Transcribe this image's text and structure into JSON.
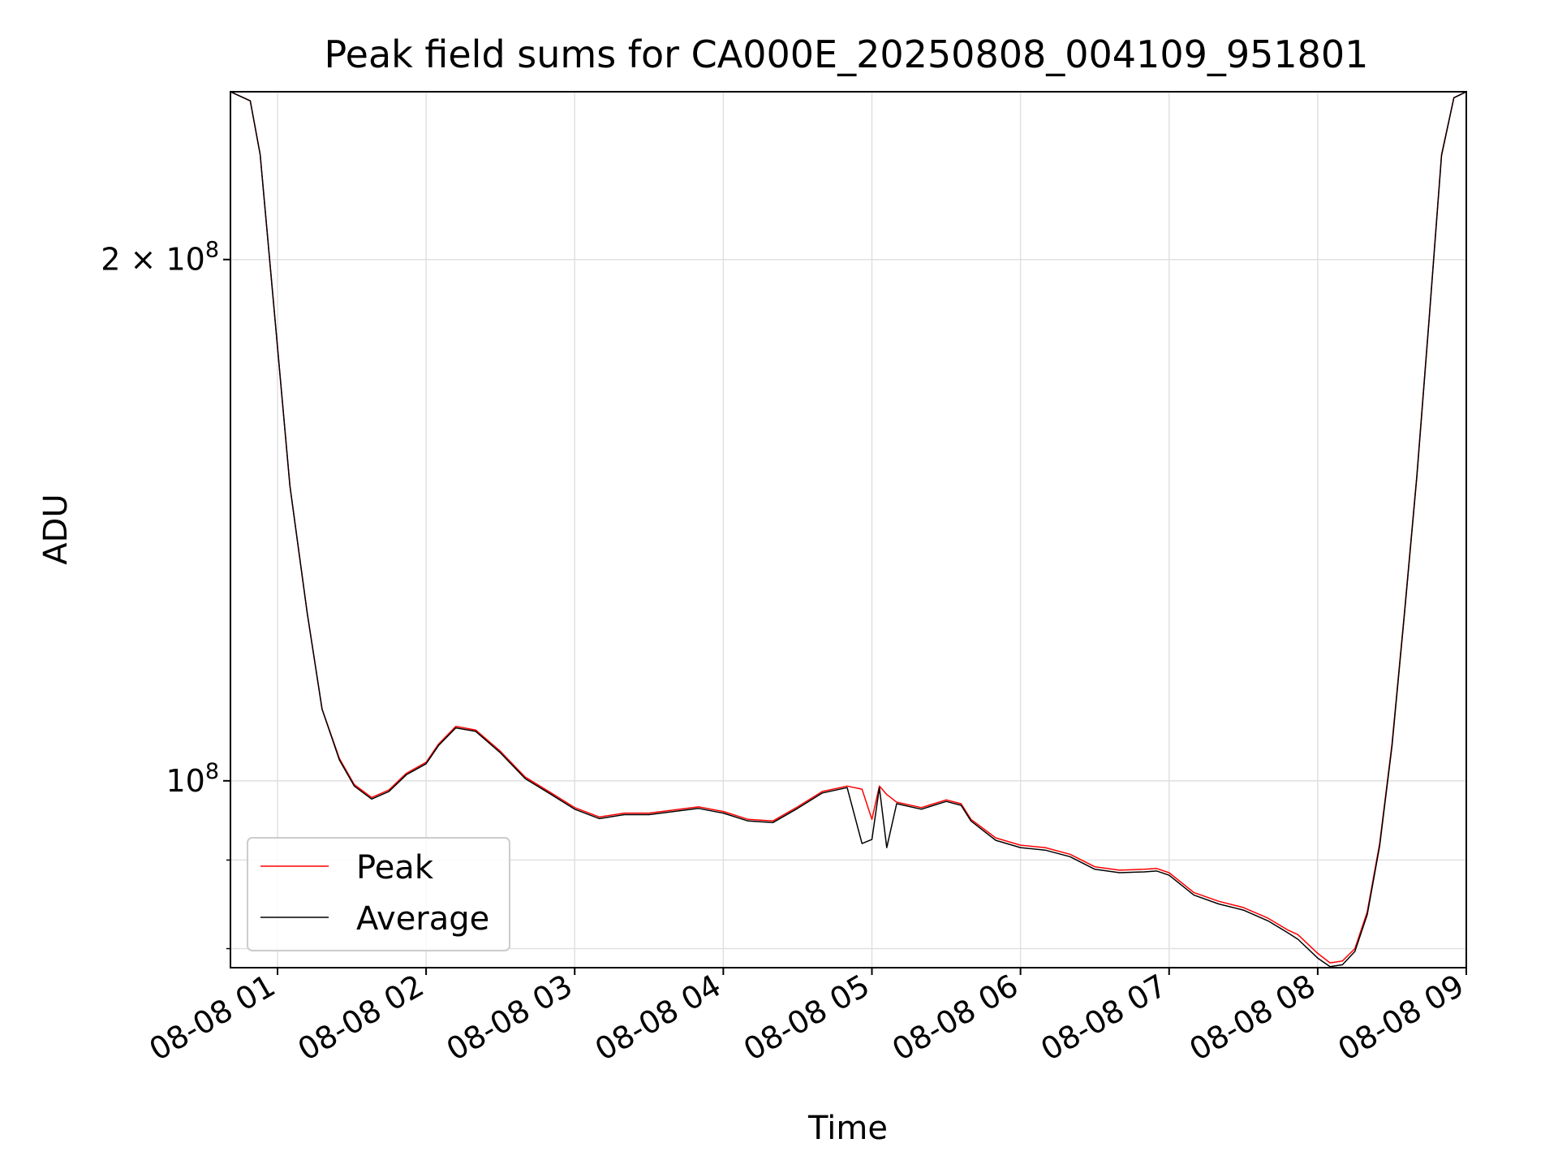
{
  "chart_data": {
    "type": "line",
    "title": "Peak field sums for CA000E_20250808_004109_951801",
    "xlabel": "Time",
    "ylabel": "ADU",
    "y_scale": "log",
    "ylim": [
      78000000,
      250000000
    ],
    "xlim": [
      "2025-08-08 00:41",
      "2025-08-08 09:00"
    ],
    "grid": true,
    "legend_position": "lower-left",
    "x_ticks": [
      {
        "time": "2025-08-08 01:00",
        "label": "08-08 01"
      },
      {
        "time": "2025-08-08 02:00",
        "label": "08-08 02"
      },
      {
        "time": "2025-08-08 03:00",
        "label": "08-08 03"
      },
      {
        "time": "2025-08-08 04:00",
        "label": "08-08 04"
      },
      {
        "time": "2025-08-08 05:00",
        "label": "08-08 05"
      },
      {
        "time": "2025-08-08 06:00",
        "label": "08-08 06"
      },
      {
        "time": "2025-08-08 07:00",
        "label": "08-08 07"
      },
      {
        "time": "2025-08-08 08:00",
        "label": "08-08 08"
      },
      {
        "time": "2025-08-08 09:00",
        "label": "08-08 09"
      }
    ],
    "y_ticks": [
      {
        "value": 100000000,
        "base": "10",
        "exp": "8",
        "mant": ""
      },
      {
        "value": 200000000,
        "base": "10",
        "exp": "8",
        "mant": "2 × "
      }
    ],
    "y_minor_ticks": [
      80000000,
      90000000
    ],
    "series": [
      {
        "name": "Peak",
        "color": "#ff0000",
        "x": [
          "2025-08-08 00:41",
          "2025-08-08 00:49",
          "2025-08-08 00:53",
          "2025-08-08 01:00",
          "2025-08-08 01:05",
          "2025-08-08 01:12",
          "2025-08-08 01:18",
          "2025-08-08 01:25",
          "2025-08-08 01:31",
          "2025-08-08 01:38",
          "2025-08-08 01:45",
          "2025-08-08 01:52",
          "2025-08-08 02:00",
          "2025-08-08 02:05",
          "2025-08-08 02:12",
          "2025-08-08 02:20",
          "2025-08-08 02:30",
          "2025-08-08 02:40",
          "2025-08-08 02:50",
          "2025-08-08 03:00",
          "2025-08-08 03:10",
          "2025-08-08 03:20",
          "2025-08-08 03:30",
          "2025-08-08 03:40",
          "2025-08-08 03:50",
          "2025-08-08 04:00",
          "2025-08-08 04:10",
          "2025-08-08 04:20",
          "2025-08-08 04:30",
          "2025-08-08 04:40",
          "2025-08-08 04:50",
          "2025-08-08 04:56",
          "2025-08-08 05:00",
          "2025-08-08 05:03",
          "2025-08-08 05:06",
          "2025-08-08 05:10",
          "2025-08-08 05:20",
          "2025-08-08 05:30",
          "2025-08-08 05:36",
          "2025-08-08 05:40",
          "2025-08-08 05:50",
          "2025-08-08 06:00",
          "2025-08-08 06:10",
          "2025-08-08 06:20",
          "2025-08-08 06:30",
          "2025-08-08 06:40",
          "2025-08-08 06:50",
          "2025-08-08 06:55",
          "2025-08-08 07:00",
          "2025-08-08 07:10",
          "2025-08-08 07:20",
          "2025-08-08 07:30",
          "2025-08-08 07:40",
          "2025-08-08 07:48",
          "2025-08-08 07:52",
          "2025-08-08 08:00",
          "2025-08-08 08:05",
          "2025-08-08 08:10",
          "2025-08-08 08:15",
          "2025-08-08 08:20",
          "2025-08-08 08:25",
          "2025-08-08 08:30",
          "2025-08-08 08:35",
          "2025-08-08 08:40",
          "2025-08-08 08:45",
          "2025-08-08 08:50",
          "2025-08-08 08:55",
          "2025-08-08 09:00"
        ],
        "y": [
          250000000,
          247000000,
          230000000,
          178000000,
          148000000,
          125000000,
          110000000,
          103000000,
          99500000,
          97800000,
          98800000,
          101000000,
          102500000,
          105000000,
          107500000,
          107000000,
          104000000,
          100500000,
          98500000,
          96500000,
          95300000,
          95800000,
          95800000,
          96200000,
          96600000,
          96000000,
          95000000,
          94800000,
          96600000,
          98600000,
          99300000,
          98900000,
          95000000,
          99300000,
          98200000,
          97200000,
          96500000,
          97500000,
          97000000,
          95000000,
          92700000,
          91800000,
          91500000,
          90700000,
          89200000,
          88800000,
          88900000,
          89000000,
          88500000,
          86200000,
          85200000,
          84500000,
          83300000,
          82000000,
          81500000,
          79500000,
          78500000,
          78700000,
          80000000,
          84000000,
          92000000,
          105000000,
          125000000,
          150000000,
          185000000,
          230000000,
          248000000,
          250000000
        ]
      },
      {
        "name": "Average",
        "color": "#000000",
        "x": [
          "2025-08-08 00:41",
          "2025-08-08 00:49",
          "2025-08-08 00:53",
          "2025-08-08 01:00",
          "2025-08-08 01:05",
          "2025-08-08 01:12",
          "2025-08-08 01:18",
          "2025-08-08 01:25",
          "2025-08-08 01:31",
          "2025-08-08 01:38",
          "2025-08-08 01:45",
          "2025-08-08 01:52",
          "2025-08-08 02:00",
          "2025-08-08 02:05",
          "2025-08-08 02:12",
          "2025-08-08 02:20",
          "2025-08-08 02:30",
          "2025-08-08 02:40",
          "2025-08-08 02:50",
          "2025-08-08 03:00",
          "2025-08-08 03:10",
          "2025-08-08 03:20",
          "2025-08-08 03:30",
          "2025-08-08 03:40",
          "2025-08-08 03:50",
          "2025-08-08 04:00",
          "2025-08-08 04:10",
          "2025-08-08 04:20",
          "2025-08-08 04:30",
          "2025-08-08 04:40",
          "2025-08-08 04:50",
          "2025-08-08 04:56",
          "2025-08-08 05:00",
          "2025-08-08 05:03",
          "2025-08-08 05:06",
          "2025-08-08 05:10",
          "2025-08-08 05:20",
          "2025-08-08 05:30",
          "2025-08-08 05:36",
          "2025-08-08 05:40",
          "2025-08-08 05:50",
          "2025-08-08 06:00",
          "2025-08-08 06:10",
          "2025-08-08 06:20",
          "2025-08-08 06:30",
          "2025-08-08 06:40",
          "2025-08-08 06:50",
          "2025-08-08 06:55",
          "2025-08-08 07:00",
          "2025-08-08 07:10",
          "2025-08-08 07:20",
          "2025-08-08 07:30",
          "2025-08-08 07:40",
          "2025-08-08 07:48",
          "2025-08-08 07:52",
          "2025-08-08 08:00",
          "2025-08-08 08:05",
          "2025-08-08 08:10",
          "2025-08-08 08:15",
          "2025-08-08 08:20",
          "2025-08-08 08:25",
          "2025-08-08 08:30",
          "2025-08-08 08:35",
          "2025-08-08 08:40",
          "2025-08-08 08:45",
          "2025-08-08 08:50",
          "2025-08-08 08:55",
          "2025-08-08 09:00"
        ],
        "y": [
          250000000,
          247000000,
          230000000,
          178000000,
          148000000,
          125000000,
          110000000,
          102800000,
          99300000,
          97600000,
          98600000,
          100800000,
          102300000,
          104800000,
          107300000,
          106800000,
          103800000,
          100300000,
          98300000,
          96300000,
          95100000,
          95600000,
          95600000,
          96000000,
          96400000,
          95800000,
          94800000,
          94600000,
          96400000,
          98400000,
          99100000,
          92000000,
          92500000,
          99100000,
          91500000,
          97000000,
          96300000,
          97300000,
          96800000,
          94800000,
          92400000,
          91500000,
          91200000,
          90400000,
          88900000,
          88500000,
          88600000,
          88700000,
          88200000,
          85900000,
          84900000,
          84200000,
          83000000,
          81700000,
          81000000,
          79000000,
          78100000,
          78300000,
          79700000,
          83700000,
          91700000,
          104700000,
          124700000,
          149700000,
          184700000,
          229700000,
          248000000,
          250000000
        ]
      }
    ]
  }
}
